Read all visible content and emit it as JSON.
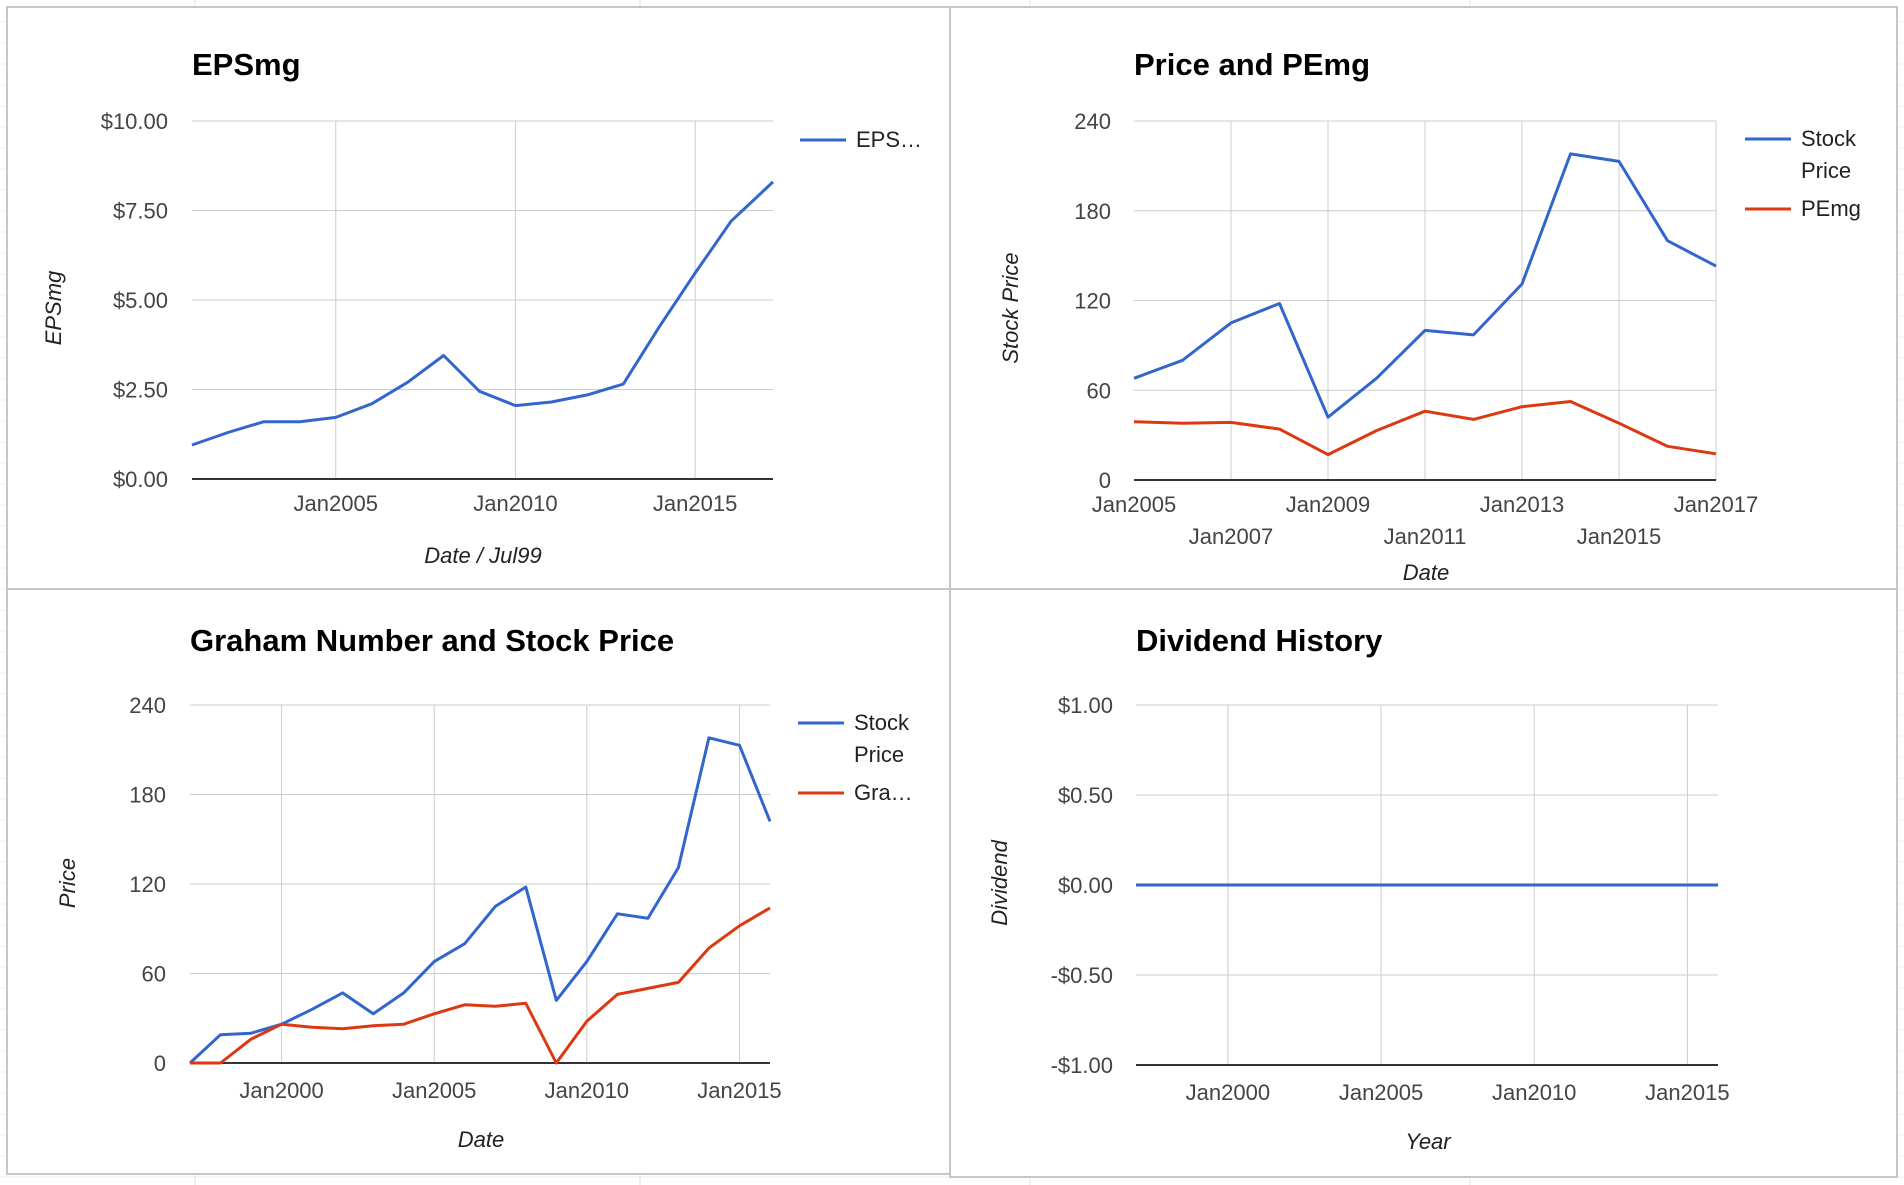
{
  "chart_data": [
    {
      "type": "line",
      "title": "EPSmg",
      "xlabel": "Date / Jul99",
      "ylabel": "EPSmg",
      "x_ticks": [
        "Jan2005",
        "Jan2010",
        "Jan2015"
      ],
      "y_ticks": [
        "$0.00",
        "$2.50",
        "$5.00",
        "$7.50",
        "$10.00"
      ],
      "xlim": [
        "2001-01",
        "2017-03"
      ],
      "ylim": [
        0,
        10
      ],
      "grid": true,
      "legend_position": "right",
      "x": [
        "2001-01",
        "2002-01",
        "2003-01",
        "2004-01",
        "2005-01",
        "2006-01",
        "2007-01",
        "2008-01",
        "2009-01",
        "2010-01",
        "2011-01",
        "2012-01",
        "2013-01",
        "2014-01",
        "2015-01",
        "2016-01",
        "2017-03"
      ],
      "series": [
        {
          "name": "EPS…",
          "color": "#3366cc",
          "values": [
            0.95,
            1.3,
            1.6,
            1.6,
            1.72,
            2.1,
            2.7,
            3.45,
            2.45,
            2.05,
            2.15,
            2.35,
            2.65,
            4.25,
            5.75,
            7.2,
            8.3
          ]
        }
      ]
    },
    {
      "type": "line",
      "title": "Price and PEmg",
      "xlabel": "Date",
      "ylabel": "Stock Price",
      "x_ticks": [
        "Jan2005",
        "Jan2007",
        "Jan2009",
        "Jan2011",
        "Jan2013",
        "Jan2015",
        "Jan2017"
      ],
      "y_ticks": [
        "0",
        "60",
        "120",
        "180",
        "240"
      ],
      "xlim": [
        "2005-01",
        "2017-01"
      ],
      "ylim": [
        0,
        240
      ],
      "grid": true,
      "legend_position": "right",
      "x": [
        "2005-01",
        "2006-01",
        "2007-01",
        "2008-01",
        "2009-01",
        "2010-01",
        "2011-01",
        "2012-01",
        "2013-01",
        "2014-01",
        "2015-01",
        "2016-01",
        "2017-01"
      ],
      "series": [
        {
          "name": "Stock Price",
          "color": "#3366cc",
          "values": [
            68,
            80,
            105,
            118,
            42,
            68,
            100,
            97,
            131,
            218,
            213,
            160,
            143
          ]
        },
        {
          "name": "PEmg",
          "color": "#dc3912",
          "values": [
            39,
            38,
            38.5,
            34,
            17,
            33,
            46,
            40.5,
            49,
            52.5,
            38,
            22.5,
            17.5
          ]
        }
      ]
    },
    {
      "type": "line",
      "title": "Graham Number and Stock Price",
      "xlabel": "Date",
      "ylabel": "Price",
      "x_ticks": [
        "Jan2000",
        "Jan2005",
        "Jan2010",
        "Jan2015"
      ],
      "y_ticks": [
        "0",
        "60",
        "120",
        "180",
        "240"
      ],
      "xlim": [
        "1997-01",
        "2016-01"
      ],
      "ylim": [
        0,
        240
      ],
      "grid": true,
      "legend_position": "right",
      "x": [
        "1997-01",
        "1998-01",
        "1999-01",
        "2000-01",
        "2001-01",
        "2002-01",
        "2003-01",
        "2004-01",
        "2005-01",
        "2006-01",
        "2007-01",
        "2008-01",
        "2009-01",
        "2010-01",
        "2011-01",
        "2012-01",
        "2013-01",
        "2014-01",
        "2015-01",
        "2016-01"
      ],
      "series": [
        {
          "name": "Stock Price",
          "color": "#3366cc",
          "values": [
            0,
            19,
            20,
            26,
            36,
            47,
            33,
            47,
            68,
            80,
            105,
            118,
            42,
            68,
            100,
            97,
            131,
            218,
            213,
            162
          ]
        },
        {
          "name": "Gra…",
          "color": "#dc3912",
          "values": [
            0,
            0,
            16,
            26,
            24,
            23,
            25,
            26,
            33,
            39,
            38,
            40,
            0,
            28,
            46,
            50,
            54,
            77,
            92,
            104
          ]
        }
      ]
    },
    {
      "type": "line",
      "title": "Dividend History",
      "xlabel": "Year",
      "ylabel": "Dividend",
      "x_ticks": [
        "Jan2000",
        "Jan2005",
        "Jan2010",
        "Jan2015"
      ],
      "y_ticks": [
        "-$1.00",
        "-$0.50",
        "$0.00",
        "$0.50",
        "$1.00"
      ],
      "xlim": [
        "1997-01",
        "2016-01"
      ],
      "ylim": [
        -1,
        1
      ],
      "grid": true,
      "x": [
        "1997-01",
        "1998-01",
        "1999-01",
        "2000-01",
        "2001-01",
        "2002-01",
        "2003-01",
        "2004-01",
        "2005-01",
        "2006-01",
        "2007-01",
        "2008-01",
        "2009-01",
        "2010-01",
        "2011-01",
        "2012-01",
        "2013-01",
        "2014-01",
        "2015-01",
        "2016-01"
      ],
      "series": [
        {
          "color": "#3366cc",
          "values": [
            0,
            0,
            0,
            0,
            0,
            0,
            0,
            0,
            0,
            0,
            0,
            0,
            0,
            0,
            0,
            0,
            0,
            0,
            0,
            0
          ]
        }
      ]
    }
  ]
}
